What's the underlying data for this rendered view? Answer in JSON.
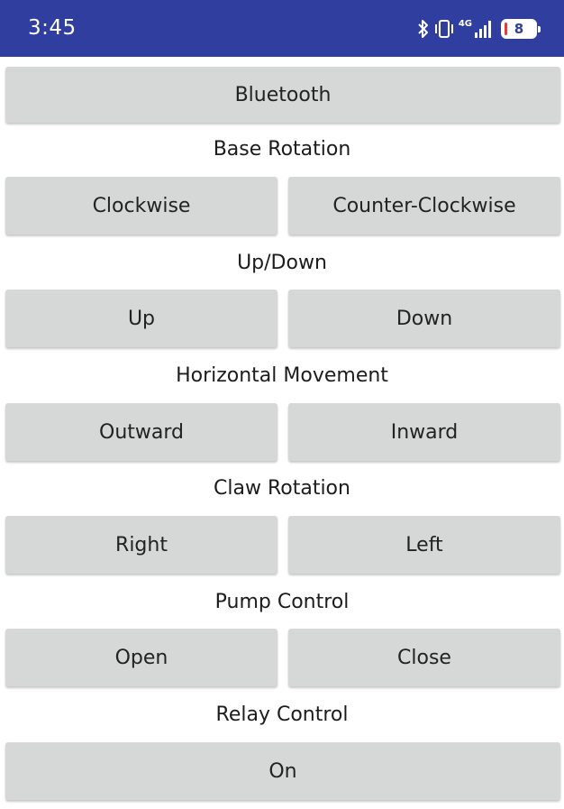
{
  "status_bar": {
    "time": "3:45",
    "battery_level": "8",
    "network_label": "4G",
    "icons": [
      "bluetooth-icon",
      "vibrate-icon",
      "signal-icon",
      "battery-icon"
    ],
    "background_color": "#303f9f"
  },
  "bluetooth_button": "Bluetooth",
  "sections": [
    {
      "label": "Base Rotation",
      "buttons": [
        "Clockwise",
        "Counter-Clockwise"
      ]
    },
    {
      "label": "Up/Down",
      "buttons": [
        "Up",
        "Down"
      ]
    },
    {
      "label": "Horizontal Movement",
      "buttons": [
        "Outward",
        "Inward"
      ]
    },
    {
      "label": "Claw Rotation",
      "buttons": [
        "Right",
        "Left"
      ]
    },
    {
      "label": "Pump Control",
      "buttons": [
        "Open",
        "Close"
      ]
    },
    {
      "label": "Relay Control",
      "buttons": [
        "On"
      ]
    }
  ],
  "colors": {
    "button_background": "#d6d7d7",
    "page_background": "#ffffff"
  }
}
